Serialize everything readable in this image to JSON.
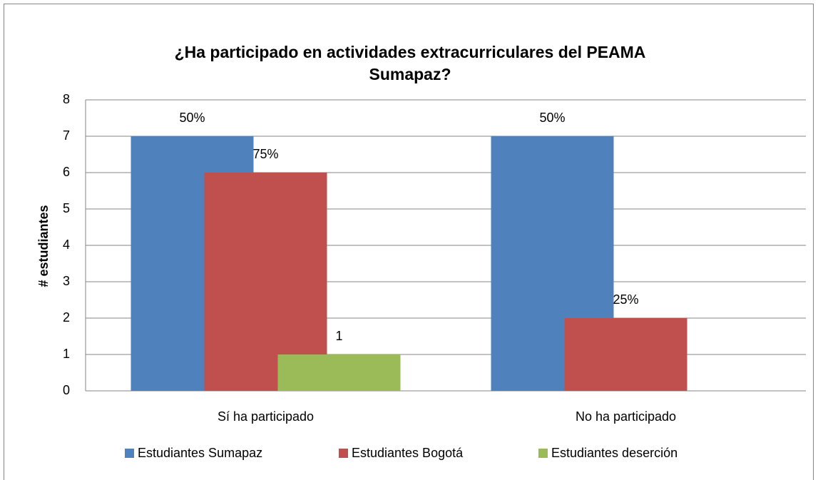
{
  "chart_data": {
    "type": "bar",
    "title": [
      "¿Ha participado en actividades extracurriculares del PEAMA",
      "Sumapaz?"
    ],
    "y_label": "# estudiantes",
    "categories": [
      "Sí ha participado",
      "No ha participado"
    ],
    "series": [
      {
        "name": "Estudiantes Sumapaz",
        "color": "#4f81bd",
        "values": [
          7,
          7
        ],
        "data_labels": [
          "50%",
          "50%"
        ]
      },
      {
        "name": "Estudiantes Bogotá",
        "color": "#c0504d",
        "values": [
          6,
          2
        ],
        "data_labels": [
          "75%",
          "25%"
        ]
      },
      {
        "name": "Estudiantes deserción",
        "color": "#9bbb59",
        "values": [
          1,
          null
        ],
        "data_labels": [
          "1",
          null
        ]
      }
    ],
    "ylim": [
      0,
      8
    ],
    "yticks": [
      0,
      1,
      2,
      3,
      4,
      5,
      6,
      7,
      8
    ],
    "grid": true,
    "legend": "bottom"
  }
}
